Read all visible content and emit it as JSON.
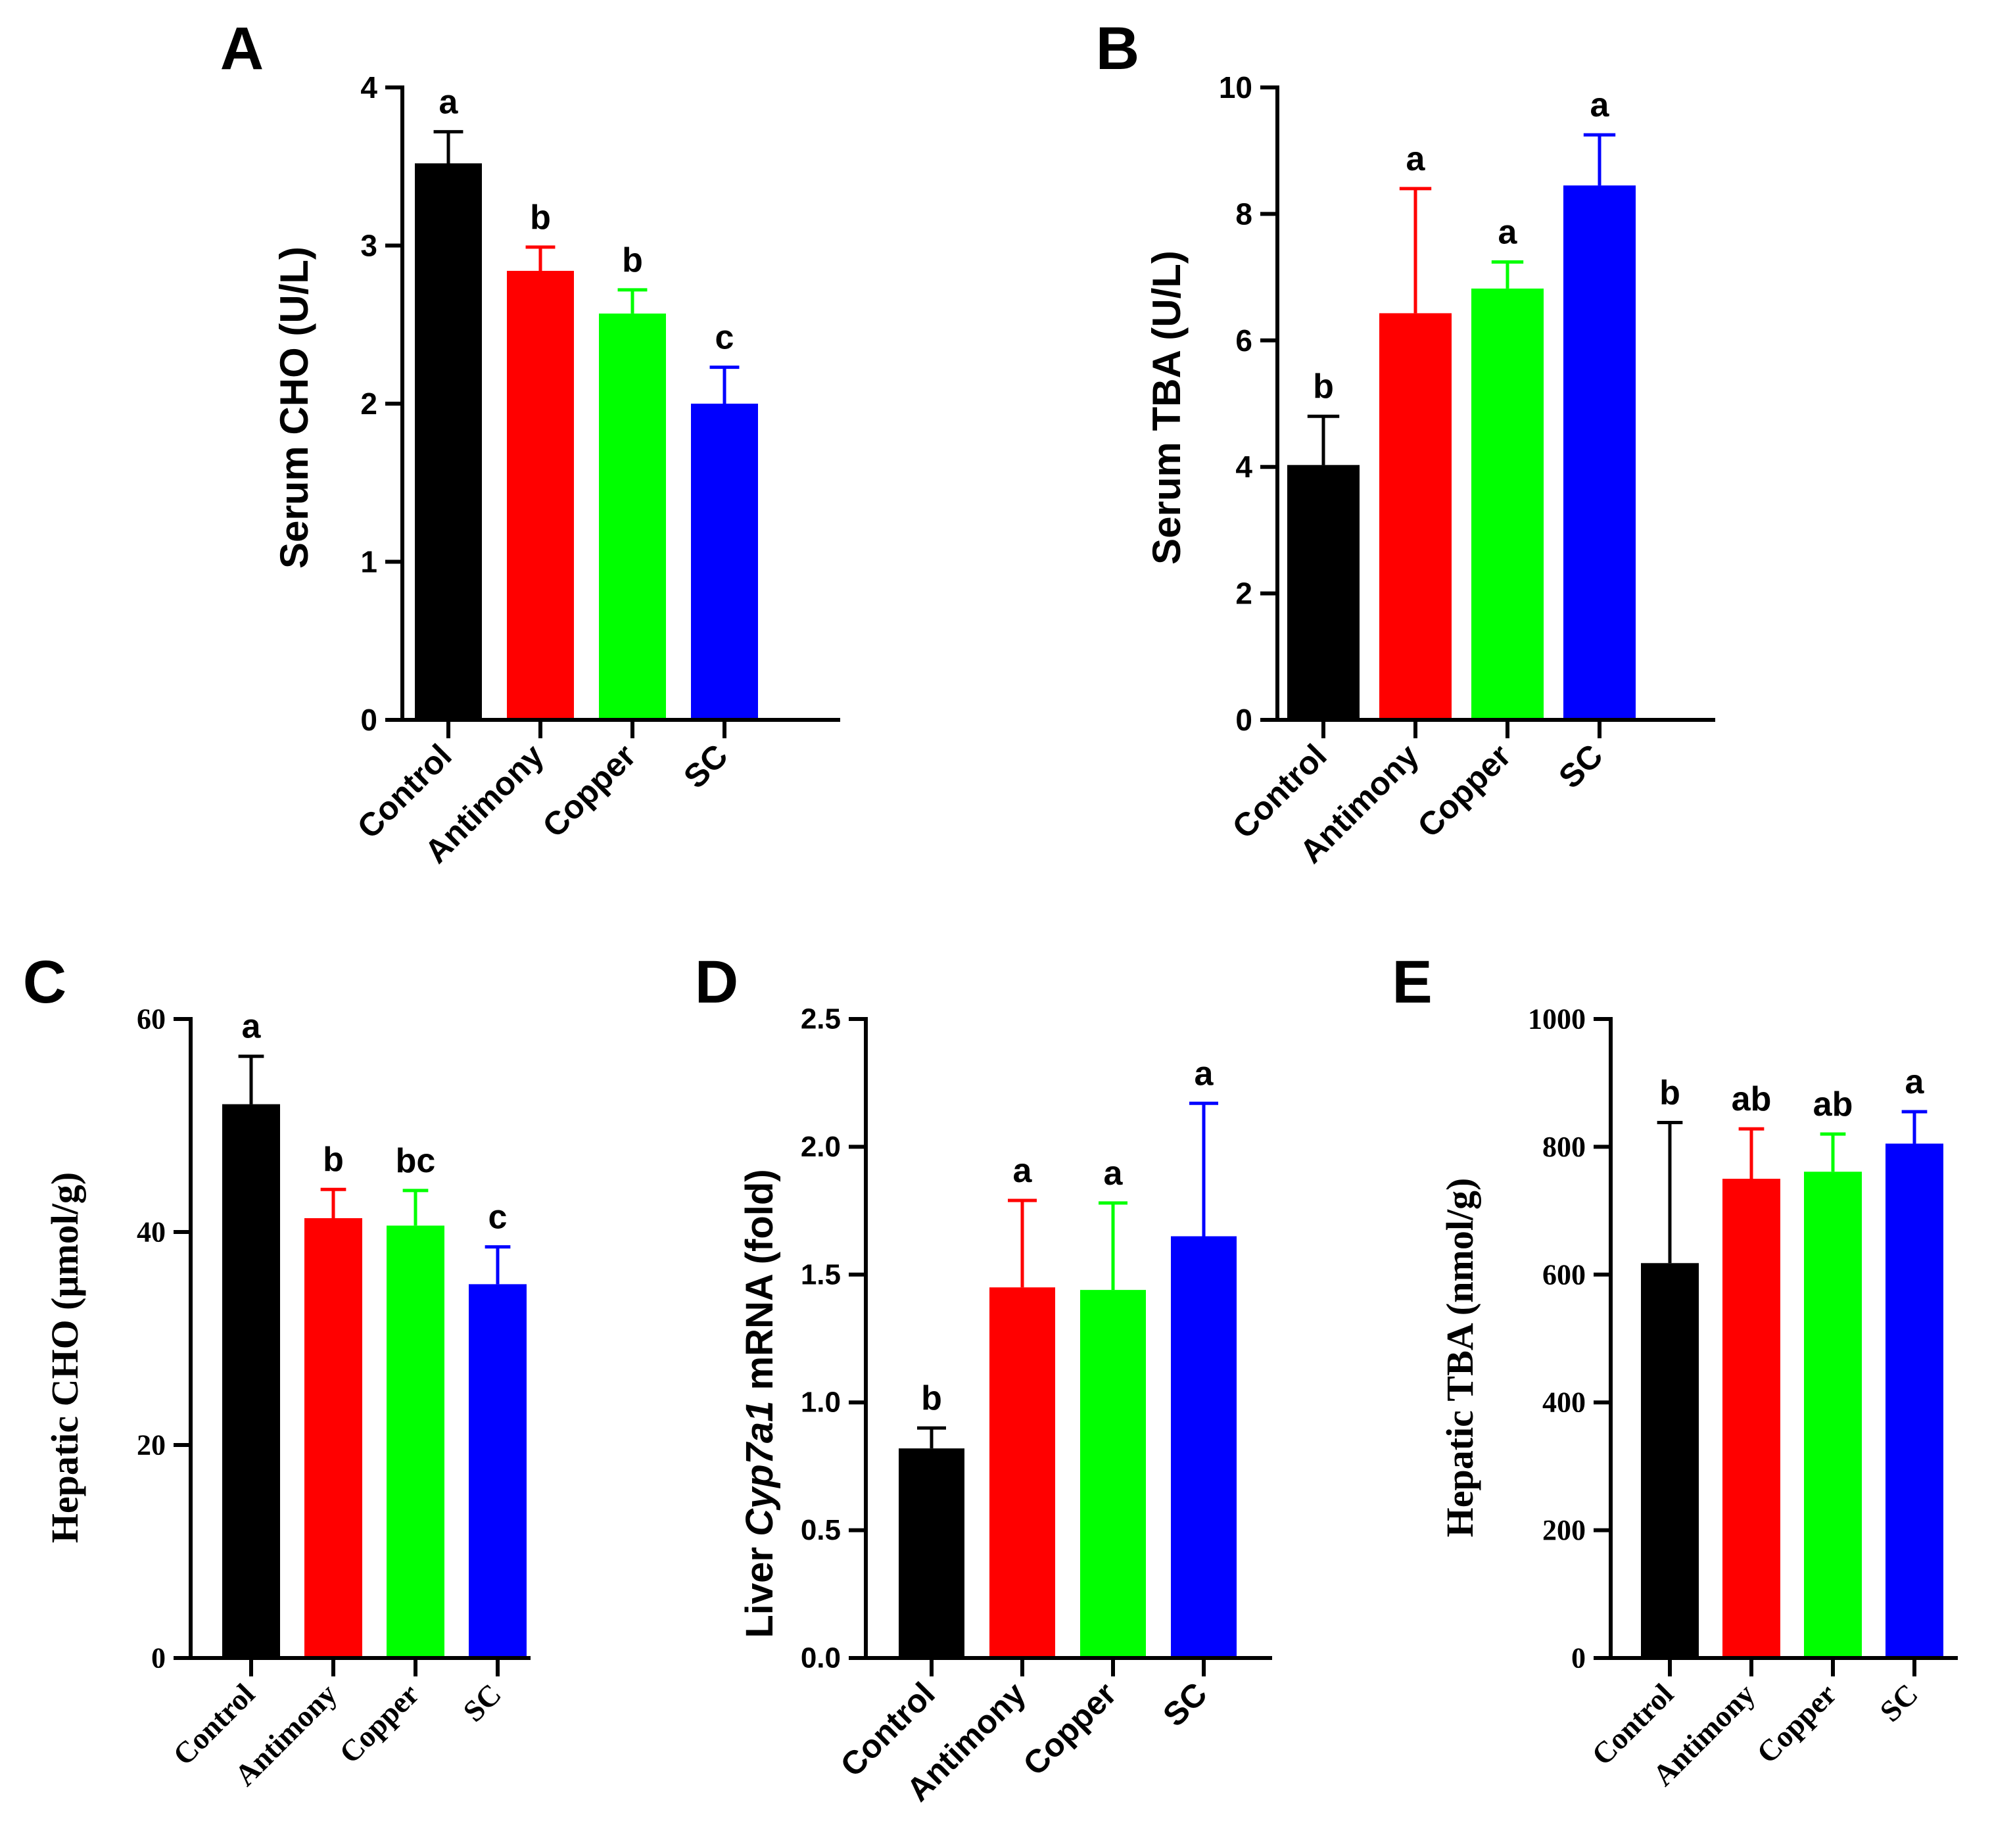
{
  "figure": {
    "colors": {
      "Control": "#000000",
      "Antimony": "#ff0000",
      "Copper": "#00ff00",
      "SC": "#0000ff"
    }
  },
  "chart_data": [
    {
      "panel": "A",
      "type": "bar",
      "categories": [
        "Control",
        "Antimony",
        "Copper",
        "SC"
      ],
      "values": [
        3.52,
        2.84,
        2.57,
        2.0
      ],
      "errors": [
        0.2,
        0.15,
        0.15,
        0.23
      ],
      "significance": [
        "a",
        "b",
        "b",
        "c"
      ],
      "ylabel": "Serum CHO (U/L)",
      "ylim": [
        0,
        4
      ],
      "yticks": [
        0,
        1,
        2,
        3,
        4
      ],
      "ytick_labels": [
        "0",
        "1",
        "2",
        "3",
        "4"
      ],
      "font": "sans"
    },
    {
      "panel": "B",
      "type": "bar",
      "categories": [
        "Control",
        "Antimony",
        "Copper",
        "SC"
      ],
      "values": [
        4.03,
        6.43,
        6.82,
        8.45
      ],
      "errors": [
        0.77,
        1.97,
        0.42,
        0.8
      ],
      "significance": [
        "b",
        "a",
        "a",
        "a"
      ],
      "ylabel": "Serum TBA (U/L)",
      "ylim": [
        0,
        10
      ],
      "yticks": [
        0,
        2,
        4,
        6,
        8,
        10
      ],
      "ytick_labels": [
        "0",
        "2",
        "4",
        "6",
        "8",
        "10"
      ],
      "font": "sans"
    },
    {
      "panel": "C",
      "type": "bar",
      "categories": [
        "Control",
        "Antimony",
        "Copper",
        "SC"
      ],
      "values": [
        52.0,
        41.3,
        40.6,
        35.1
      ],
      "errors": [
        4.5,
        2.7,
        3.3,
        3.5
      ],
      "significance": [
        "a",
        "b",
        "bc",
        "c"
      ],
      "ylabel": "Hepatic CHO (μmol/g)",
      "ylim": [
        0,
        60
      ],
      "yticks": [
        0,
        20,
        40,
        60
      ],
      "ytick_labels": [
        "0",
        "20",
        "40",
        "60"
      ],
      "font": "serif"
    },
    {
      "panel": "D",
      "type": "bar",
      "categories": [
        "Control",
        "Antimony",
        "Copper",
        "SC"
      ],
      "values": [
        0.82,
        1.45,
        1.44,
        1.65
      ],
      "errors": [
        0.08,
        0.34,
        0.34,
        0.52
      ],
      "significance": [
        "b",
        "a",
        "a",
        "a"
      ],
      "ylabel_prefix": "Liver ",
      "ylabel_italic": "Cyp7a1",
      "ylabel_suffix": " mRNA (fold)",
      "ylim": [
        0,
        2.5
      ],
      "yticks": [
        0,
        0.5,
        1.0,
        1.5,
        2.0,
        2.5
      ],
      "ytick_labels": [
        "0.0",
        "0.5",
        "1.0",
        "1.5",
        "2.0",
        "2.5"
      ],
      "font": "sans"
    },
    {
      "panel": "E",
      "type": "bar",
      "categories": [
        "Control",
        "Antimony",
        "Copper",
        "SC"
      ],
      "values": [
        618,
        750,
        761,
        805
      ],
      "errors": [
        220,
        78,
        59,
        50
      ],
      "significance": [
        "b",
        "ab",
        "ab",
        "a"
      ],
      "ylabel": "Hepatic TBA (nmol/g)",
      "ylim": [
        0,
        1000
      ],
      "yticks": [
        0,
        200,
        400,
        600,
        800,
        1000
      ],
      "ytick_labels": [
        "0",
        "200",
        "400",
        "600",
        "800",
        "1000"
      ],
      "font": "serif"
    }
  ]
}
